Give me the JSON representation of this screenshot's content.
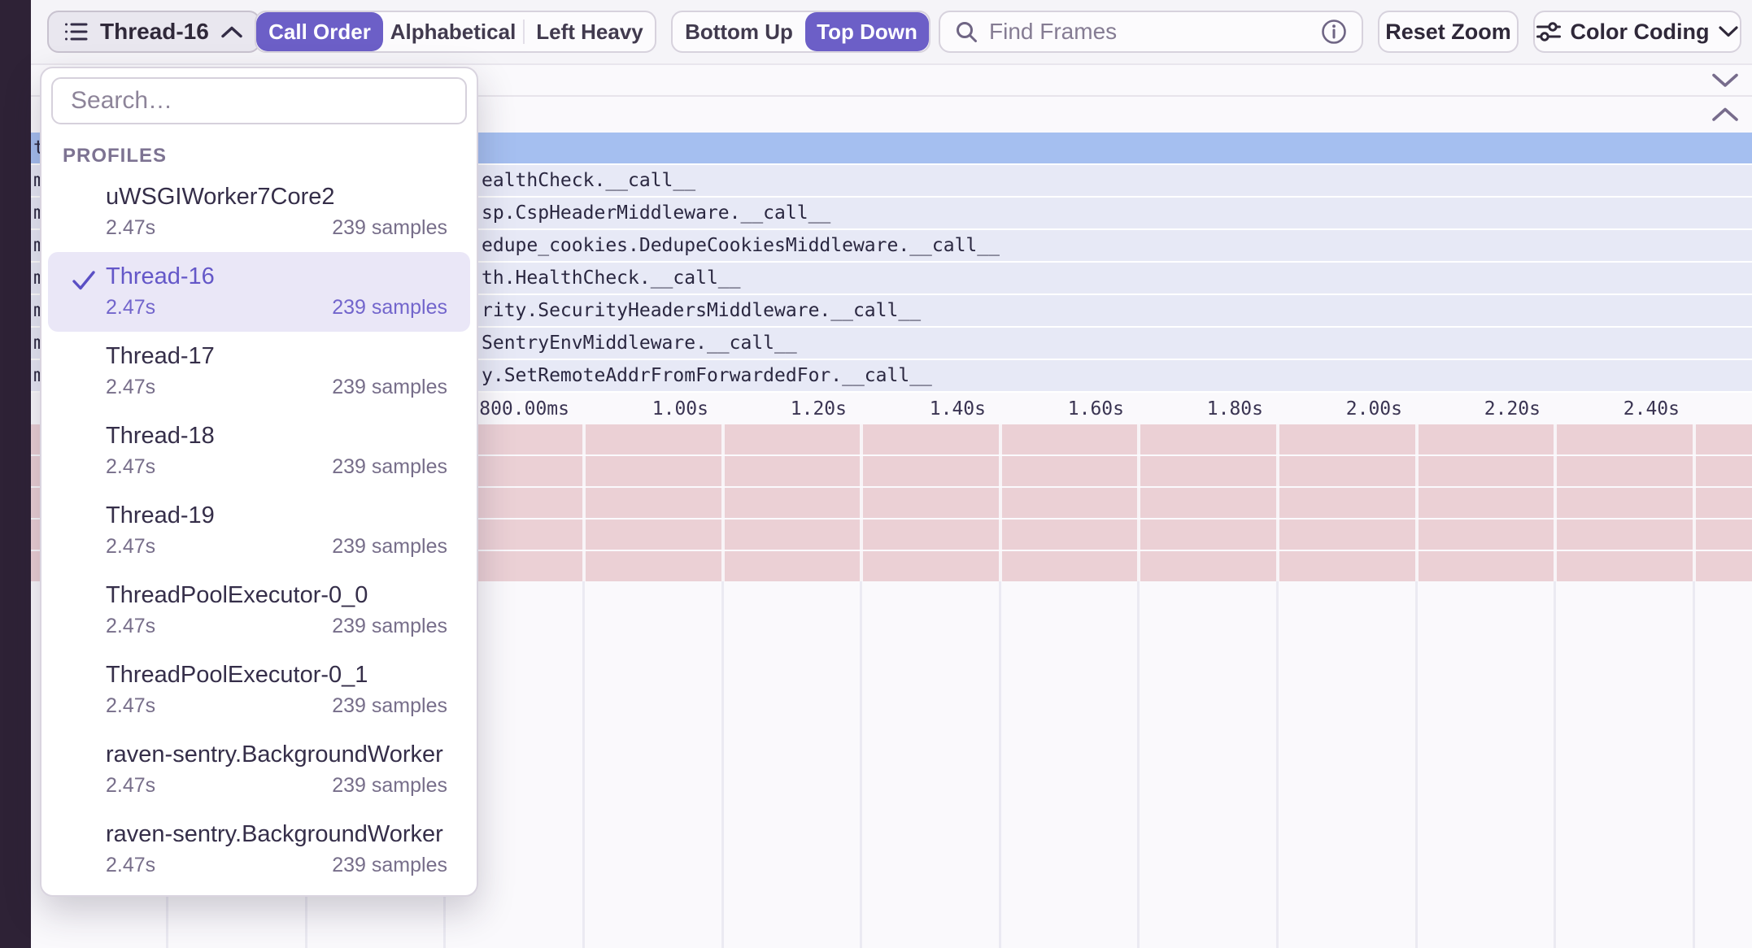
{
  "toolbar": {
    "thread_selector_label": "Thread-16",
    "sort_options": [
      "Call Order",
      "Alphabetical",
      "Left Heavy"
    ],
    "sort_active": "Call Order",
    "direction_options": [
      "Bottom Up",
      "Top Down"
    ],
    "direction_active": "Top Down",
    "find_frames_placeholder": "Find Frames",
    "reset_zoom_label": "Reset Zoom",
    "color_coding_label": "Color Coding"
  },
  "thread_dropdown": {
    "search_placeholder": "Search…",
    "section_label": "PROFILES",
    "items": [
      {
        "name": "uWSGIWorker7Core2",
        "duration": "2.47s",
        "samples": "239 samples",
        "selected": false
      },
      {
        "name": "Thread-16",
        "duration": "2.47s",
        "samples": "239 samples",
        "selected": true
      },
      {
        "name": "Thread-17",
        "duration": "2.47s",
        "samples": "239 samples",
        "selected": false
      },
      {
        "name": "Thread-18",
        "duration": "2.47s",
        "samples": "239 samples",
        "selected": false
      },
      {
        "name": "Thread-19",
        "duration": "2.47s",
        "samples": "239 samples",
        "selected": false
      },
      {
        "name": "ThreadPoolExecutor-0_0",
        "duration": "2.47s",
        "samples": "239 samples",
        "selected": false
      },
      {
        "name": "ThreadPoolExecutor-0_1",
        "duration": "2.47s",
        "samples": "239 samples",
        "selected": false
      },
      {
        "name": "raven-sentry.BackgroundWorker",
        "duration": "2.47s",
        "samples": "239 samples",
        "selected": false
      },
      {
        "name": "raven-sentry.BackgroundWorker",
        "duration": "2.47s",
        "samples": "239 samples",
        "selected": false
      }
    ]
  },
  "flamegraph": {
    "rows": [
      {
        "edge": "t",
        "text": "",
        "selected": true
      },
      {
        "edge": "m",
        "text": "ealthCheck.__call__",
        "selected": false
      },
      {
        "edge": "m",
        "text": "sp.CspHeaderMiddleware.__call__",
        "selected": false
      },
      {
        "edge": "m",
        "text": "edupe_cookies.DedupeCookiesMiddleware.__call__",
        "selected": false
      },
      {
        "edge": "m",
        "text": "th.HealthCheck.__call__",
        "selected": false
      },
      {
        "edge": "m",
        "text": "rity.SecurityHeadersMiddleware.__call__",
        "selected": false
      },
      {
        "edge": "m",
        "text": "SentryEnvMiddleware.__call__",
        "selected": false
      },
      {
        "edge": "m",
        "text": "y.SetRemoteAddrFromForwardedFor.__call__",
        "selected": false
      }
    ],
    "axis_ticks": [
      "800.00ms",
      "1.00s",
      "1.20s",
      "1.40s",
      "1.60s",
      "1.80s",
      "2.00s",
      "2.20s",
      "2.40s"
    ],
    "pink_row_count": 5
  },
  "icons": [
    "list-icon",
    "chevron-up-icon",
    "chevron-down-icon",
    "search-icon",
    "info-icon",
    "sliders-icon",
    "check-icon"
  ],
  "colors": {
    "accent_purple": "#6C5FC7",
    "selected_row_blue": "#A5BFF0",
    "frame_row_lavender": "#E7E9F6",
    "sample_row_pink": "#EBD0D5",
    "left_rail_dark": "#2E2236",
    "selected_item_bg": "#EAE7F7"
  }
}
